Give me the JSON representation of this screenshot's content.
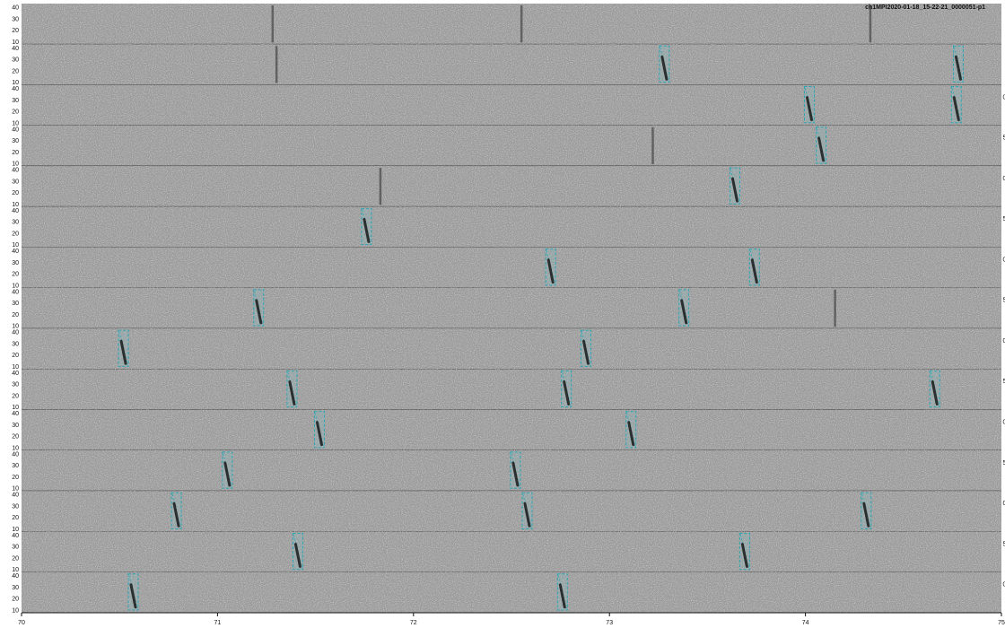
{
  "chart_data": {
    "type": "spectrogram",
    "title": "ch1MPI2020-01-18_15-22-21_0000051-p1",
    "xlim": [
      70,
      75
    ],
    "x_ticks": [
      "70",
      "71",
      "72",
      "73",
      "74",
      "75"
    ],
    "ylim": [
      10,
      40
    ],
    "y_ticks": [
      "10",
      "20",
      "30",
      "40"
    ],
    "strips": [
      {
        "index": 1,
        "detections": [],
        "vertical_marks": [
          71.28,
          72.55,
          74.33
        ],
        "right_label": ""
      },
      {
        "index": 2,
        "detections": [
          73.28,
          74.78
        ],
        "vertical_marks": [
          71.3
        ],
        "right_label": ""
      },
      {
        "index": 3,
        "detections": [
          74.02,
          74.77
        ],
        "vertical_marks": [],
        "right_label": "0"
      },
      {
        "index": 4,
        "detections": [
          74.08
        ],
        "vertical_marks": [
          73.22
        ],
        "right_label": "5"
      },
      {
        "index": 5,
        "detections": [
          73.64
        ],
        "vertical_marks": [
          71.83
        ],
        "right_label": "0"
      },
      {
        "index": 6,
        "detections": [
          71.76
        ],
        "vertical_marks": [],
        "right_label": "5"
      },
      {
        "index": 7,
        "detections": [
          72.7,
          73.74
        ],
        "vertical_marks": [],
        "right_label": "0"
      },
      {
        "index": 8,
        "detections": [
          71.21,
          73.38
        ],
        "vertical_marks": [
          74.15
        ],
        "right_label": "5"
      },
      {
        "index": 9,
        "detections": [
          70.52,
          72.88
        ],
        "vertical_marks": [],
        "right_label": "0"
      },
      {
        "index": 10,
        "detections": [
          71.38,
          72.78,
          74.66
        ],
        "vertical_marks": [],
        "right_label": "5"
      },
      {
        "index": 11,
        "detections": [
          71.52,
          73.11
        ],
        "vertical_marks": [],
        "right_label": "0"
      },
      {
        "index": 12,
        "detections": [
          71.05,
          72.52
        ],
        "vertical_marks": [],
        "right_label": "5"
      },
      {
        "index": 13,
        "detections": [
          70.79,
          72.58,
          74.31
        ],
        "vertical_marks": [],
        "right_label": "0"
      },
      {
        "index": 14,
        "detections": [
          71.41,
          73.69
        ],
        "vertical_marks": [],
        "right_label": "5"
      },
      {
        "index": 15,
        "detections": [
          70.57,
          72.76
        ],
        "vertical_marks": [],
        "right_label": "0"
      }
    ]
  },
  "colors": {
    "background": "#9a9a9a",
    "detection_box": "#2aa7b5",
    "call": "#1a1a1a"
  }
}
